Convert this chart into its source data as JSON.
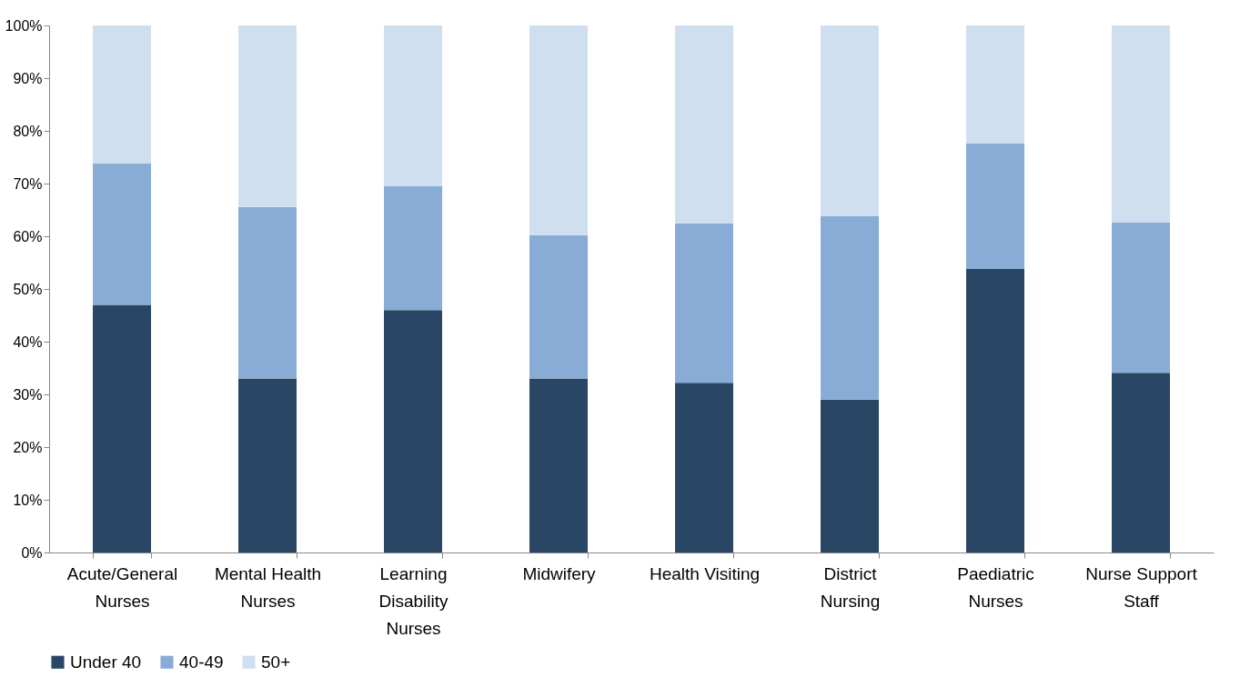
{
  "chart_data": {
    "type": "bar",
    "stacked": true,
    "categories": [
      "Acute/General\nNurses",
      "Mental Health\nNurses",
      "Learning\nDisability\nNurses",
      "Midwifery",
      "Health Visiting",
      "District\nNursing",
      "Paediatric\nNurses",
      "Nurse Support\nStaff"
    ],
    "series": [
      {
        "name": "Under 40",
        "color": "#2a4665",
        "values": [
          47,
          33,
          46,
          33,
          32.2,
          29,
          53.8,
          34.1
        ]
      },
      {
        "name": "40-49",
        "color": "#88acd6",
        "values": [
          26.8,
          32.5,
          23.5,
          27.2,
          30.2,
          34.8,
          23.8,
          28.5
        ]
      },
      {
        "name": "50+",
        "color": "#d0dff0",
        "values": [
          26.2,
          34.5,
          30.5,
          39.8,
          37.6,
          36.2,
          22.4,
          37.4
        ]
      }
    ],
    "ylim": [
      0,
      100
    ],
    "yticks": [
      {
        "value": 0,
        "label": "0%"
      },
      {
        "value": 10,
        "label": "10%"
      },
      {
        "value": 20,
        "label": "20%"
      },
      {
        "value": 30,
        "label": "30%"
      },
      {
        "value": 40,
        "label": "40%"
      },
      {
        "value": 50,
        "label": "50%"
      },
      {
        "value": 60,
        "label": "60%"
      },
      {
        "value": 70,
        "label": "70%"
      },
      {
        "value": 80,
        "label": "80%"
      },
      {
        "value": 90,
        "label": "90%"
      },
      {
        "value": 100,
        "label": "100%"
      }
    ],
    "grid": false,
    "legend": "bottom"
  }
}
